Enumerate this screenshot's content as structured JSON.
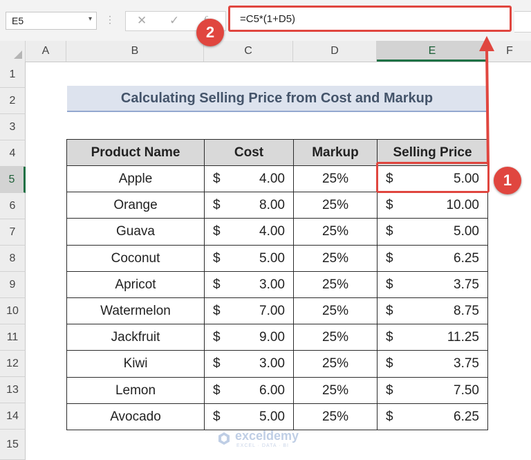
{
  "formula_bar": {
    "name_box": "E5",
    "name_box_dropdown": "▾",
    "dots": "⋮",
    "cancel_glyph": "✕",
    "enter_glyph": "✓",
    "fx_glyph": "fx",
    "formula": "=C5*(1+D5)"
  },
  "columns": [
    "A",
    "B",
    "C",
    "D",
    "E",
    "F"
  ],
  "rows": [
    "1",
    "2",
    "3",
    "4",
    "5",
    "6",
    "7",
    "8",
    "9",
    "10",
    "11",
    "12",
    "13",
    "14",
    "15"
  ],
  "selected_cell": "E5",
  "title": "Calculating Selling Price from Cost and Markup",
  "table": {
    "headers": [
      "Product Name",
      "Cost",
      "Markup",
      "Selling Price"
    ],
    "rows": [
      {
        "product": "Apple",
        "cost_symbol": "$",
        "cost": "4.00",
        "markup": "25%",
        "price_symbol": "$",
        "price": "5.00"
      },
      {
        "product": "Orange",
        "cost_symbol": "$",
        "cost": "8.00",
        "markup": "25%",
        "price_symbol": "$",
        "price": "10.00"
      },
      {
        "product": "Guava",
        "cost_symbol": "$",
        "cost": "4.00",
        "markup": "25%",
        "price_symbol": "$",
        "price": "5.00"
      },
      {
        "product": "Coconut",
        "cost_symbol": "$",
        "cost": "5.00",
        "markup": "25%",
        "price_symbol": "$",
        "price": "6.25"
      },
      {
        "product": "Apricot",
        "cost_symbol": "$",
        "cost": "3.00",
        "markup": "25%",
        "price_symbol": "$",
        "price": "3.75"
      },
      {
        "product": "Watermelon",
        "cost_symbol": "$",
        "cost": "7.00",
        "markup": "25%",
        "price_symbol": "$",
        "price": "8.75"
      },
      {
        "product": "Jackfruit",
        "cost_symbol": "$",
        "cost": "9.00",
        "markup": "25%",
        "price_symbol": "$",
        "price": "11.25"
      },
      {
        "product": "Kiwi",
        "cost_symbol": "$",
        "cost": "3.00",
        "markup": "25%",
        "price_symbol": "$",
        "price": "3.75"
      },
      {
        "product": "Lemon",
        "cost_symbol": "$",
        "cost": "6.00",
        "markup": "25%",
        "price_symbol": "$",
        "price": "7.50"
      },
      {
        "product": "Avocado",
        "cost_symbol": "$",
        "cost": "5.00",
        "markup": "25%",
        "price_symbol": "$",
        "price": "6.25"
      }
    ]
  },
  "annotations": {
    "badge_1": "1",
    "badge_2": "2",
    "color": "#e0463f"
  },
  "watermark": {
    "name": "exceldemy",
    "tagline": "EXCEL · DATA · BI"
  }
}
